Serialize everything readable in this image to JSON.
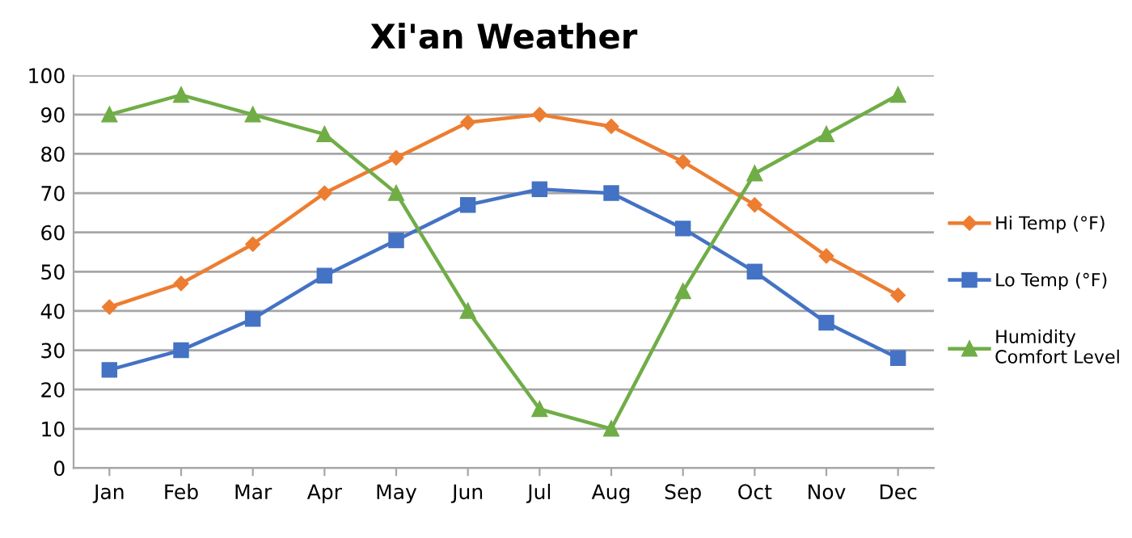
{
  "chart_data": {
    "type": "line",
    "title": "Xi'an Weather",
    "categories": [
      "Jan",
      "Feb",
      "Mar",
      "Apr",
      "May",
      "Jun",
      "Jul",
      "Aug",
      "Sep",
      "Oct",
      "Nov",
      "Dec"
    ],
    "series": [
      {
        "name": "Hi Temp (°F)",
        "color": "#ed7d31",
        "marker": "diamond",
        "values": [
          41,
          47,
          57,
          70,
          79,
          88,
          90,
          87,
          78,
          67,
          54,
          44
        ]
      },
      {
        "name": "Lo Temp (°F)",
        "color": "#4472c4",
        "marker": "square",
        "values": [
          25,
          30,
          38,
          49,
          58,
          67,
          71,
          70,
          61,
          50,
          37,
          28
        ]
      },
      {
        "name": "Humidity\nComfort Level",
        "color": "#70ad47",
        "marker": "triangle",
        "values": [
          90,
          95,
          90,
          85,
          70,
          40,
          15,
          10,
          45,
          75,
          85,
          95
        ]
      }
    ],
    "ylim": [
      0,
      100
    ],
    "yticks": [
      0,
      10,
      20,
      30,
      40,
      50,
      60,
      70,
      80,
      90,
      100
    ],
    "grid": "y",
    "legend": "right",
    "line_style": "solid"
  }
}
